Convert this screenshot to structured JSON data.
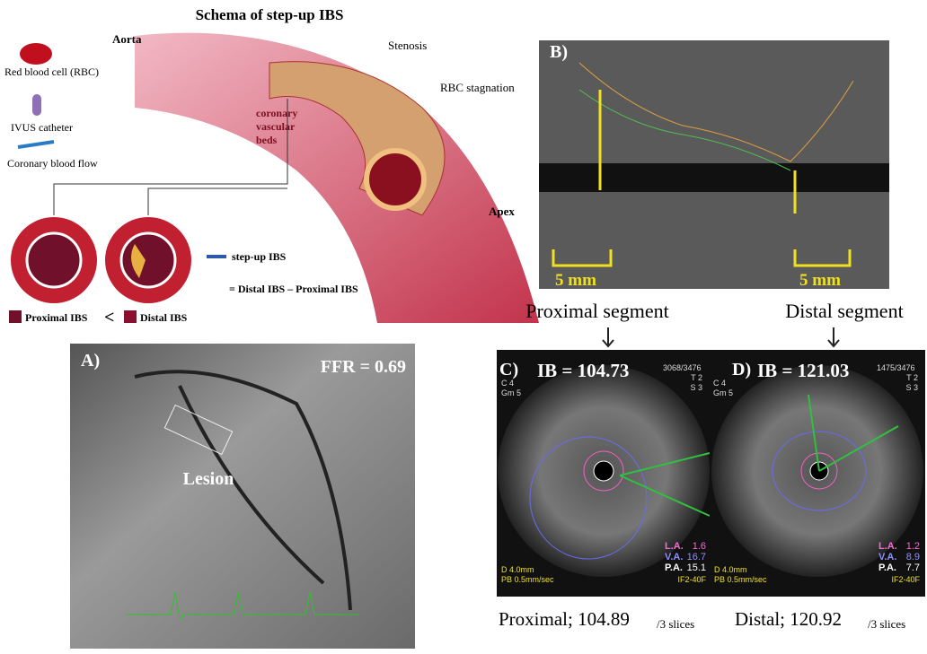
{
  "schema": {
    "title": "Schema of step-up IBS",
    "aorta": "Aorta",
    "legend": [
      "Red blood cell (RBC)",
      "IVUS catheter",
      "Coronary blood flow"
    ],
    "stenosis": "Stenosis",
    "rbc_stagnation": "RBC stagnation",
    "vascular_beds": [
      "coronary",
      "vascular",
      "beds"
    ],
    "step_up": "step-up IBS",
    "formula": "= Distal IBS – Proximal IBS",
    "comparison": {
      "left": "Proximal IBS",
      "operator": "<",
      "right": "Distal IBS"
    }
  },
  "panel_b": {
    "label": "B)",
    "apex": "Apex",
    "scale_left": "5 mm",
    "scale_right": "5 mm",
    "proximal_heading": "Proximal segment",
    "distal_heading": "Distal segment"
  },
  "panel_a": {
    "label": "A)",
    "ffr": "FFR = 0.69",
    "lesion": "Lesion"
  },
  "panel_c": {
    "label": "C)",
    "ib": "IB = 104.73",
    "frame": "3068/3476",
    "params_right": [
      "T 2",
      "S 3"
    ],
    "params_left": [
      "C 4",
      "Gm 5"
    ],
    "areas": [
      {
        "name": "L.A.",
        "value": "1.6"
      },
      {
        "name": "V.A.",
        "value": "16.7"
      },
      {
        "name": "P.A.",
        "value": "15.1"
      }
    ],
    "footer": [
      "D    4.0mm",
      "PB  0.5mm/sec"
    ],
    "probe": "IF2-40F",
    "caption": "Proximal; 104.89",
    "caption_unit": "/3 slices"
  },
  "panel_d": {
    "label": "D)",
    "ib": "IB = 121.03",
    "frame": "1475/3476",
    "params_right": [
      "T 2",
      "S 3"
    ],
    "params_left": [
      "C 4",
      "Gm 5"
    ],
    "areas": [
      {
        "name": "L.A.",
        "value": "1.2"
      },
      {
        "name": "V.A.",
        "value": "8.9"
      },
      {
        "name": "P.A.",
        "value": "7.7"
      }
    ],
    "footer": [
      "D    4.0mm",
      "PB  0.5mm/sec"
    ],
    "probe": "IF2-40F",
    "caption": "Distal; 120.92",
    "caption_unit": "/3 slices"
  }
}
